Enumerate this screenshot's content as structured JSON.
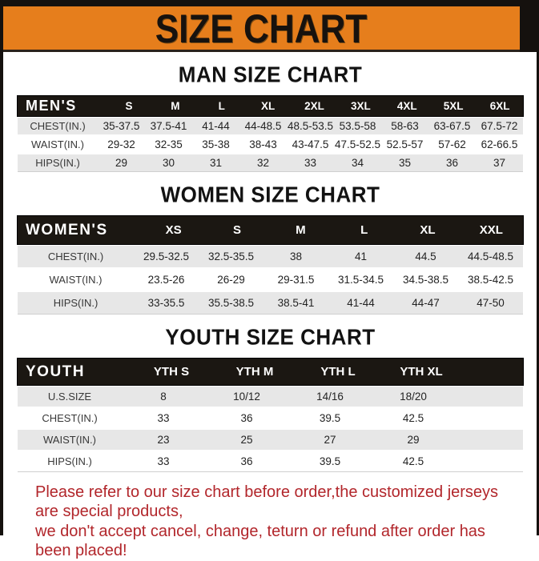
{
  "banner": {
    "title": "SIZE CHART"
  },
  "colors": {
    "banner_bg": "#E67E1C",
    "frame_black": "#15110E",
    "table_header_bg": "#1B1712",
    "row_stripe": "#E7E7E7",
    "notice_red": "#B2262B"
  },
  "sections": [
    {
      "heading": "MAN SIZE CHART",
      "table": {
        "name": "mens",
        "header": [
          "MEN'S",
          "S",
          "M",
          "L",
          "XL",
          "2XL",
          "3XL",
          "4XL",
          "5XL",
          "6XL"
        ],
        "rows": [
          [
            "CHEST(IN.)",
            "35-37.5",
            "37.5-41",
            "41-44",
            "44-48.5",
            "48.5-53.5",
            "53.5-58",
            "58-63",
            "63-67.5",
            "67.5-72"
          ],
          [
            "WAIST(IN.)",
            "29-32",
            "32-35",
            "35-38",
            "38-43",
            "43-47.5",
            "47.5-52.5",
            "52.5-57",
            "57-62",
            "62-66.5"
          ],
          [
            "HIPS(IN.)",
            "29",
            "30",
            "31",
            "32",
            "33",
            "34",
            "35",
            "36",
            "37"
          ]
        ]
      }
    },
    {
      "heading": "WOMEN SIZE CHART",
      "table": {
        "name": "womens",
        "header": [
          "WOMEN'S",
          "XS",
          "S",
          "M",
          "L",
          "XL",
          "XXL"
        ],
        "rows": [
          [
            "CHEST(IN.)",
            "29.5-32.5",
            "32.5-35.5",
            "38",
            "41",
            "44.5",
            "44.5-48.5"
          ],
          [
            "WAIST(IN.)",
            "23.5-26",
            "26-29",
            "29-31.5",
            "31.5-34.5",
            "34.5-38.5",
            "38.5-42.5"
          ],
          [
            "HIPS(IN.)",
            "33-35.5",
            "35.5-38.5",
            "38.5-41",
            "41-44",
            "44-47",
            "47-50"
          ]
        ]
      }
    },
    {
      "heading": "YOUTH SIZE CHART",
      "table": {
        "name": "youth",
        "header": [
          "YOUTH",
          "YTH S",
          "YTH M",
          "YTH L",
          "YTH XL"
        ],
        "rows": [
          [
            "U.S.SIZE",
            "8",
            "10/12",
            "14/16",
            "18/20"
          ],
          [
            "CHEST(IN.)",
            "33",
            "36",
            "39.5",
            "42.5"
          ],
          [
            "WAIST(IN.)",
            "23",
            "25",
            "27",
            "29"
          ],
          [
            "HIPS(IN.)",
            "33",
            "36",
            "39.5",
            "42.5"
          ]
        ]
      }
    }
  ],
  "notice": {
    "line1": "Please refer to our size chart before order,the customized jerseys are special products,",
    "line2": "we don't accept cancel, change, teturn or refund after order has been placed!"
  }
}
